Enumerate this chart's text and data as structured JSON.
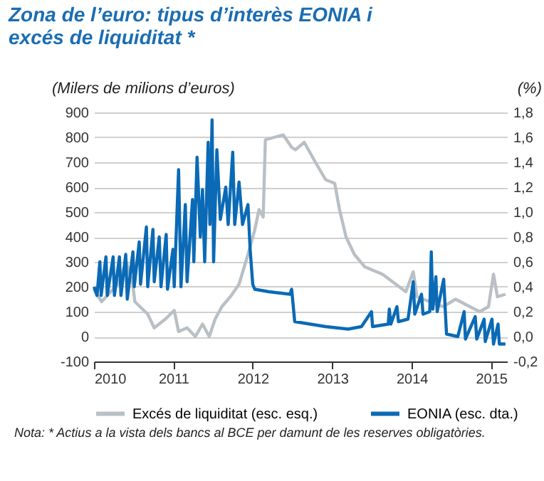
{
  "chart_data": {
    "type": "line",
    "title": "Zona de l’euro: tipus d’interès EONIA i excés de liquiditat *",
    "ylabel": "(Milers de milions d’euros)",
    "y2label": "(%)",
    "xlim": [
      "2010-01-01",
      "2015-03-15"
    ],
    "xticks": [
      {
        "value": "2010-01-01",
        "label": "2010"
      },
      {
        "value": "2011-01-01",
        "label": "2011"
      },
      {
        "value": "2012-01-01",
        "label": "2012"
      },
      {
        "value": "2013-01-01",
        "label": "2013"
      },
      {
        "value": "2014-01-01",
        "label": "2014"
      },
      {
        "value": "2015-01-01",
        "label": "2015"
      }
    ],
    "ylim": [
      -100,
      900
    ],
    "yticks": [
      -100,
      0,
      100,
      200,
      300,
      400,
      500,
      600,
      700,
      800,
      900
    ],
    "y2lim": [
      -0.2,
      1.8
    ],
    "y2ticks": [
      {
        "value": -0.2,
        "label": "-0,2"
      },
      {
        "value": 0,
        "label": "0,0"
      },
      {
        "value": 0.2,
        "label": "0,2"
      },
      {
        "value": 0.4,
        "label": "0,4"
      },
      {
        "value": 0.6,
        "label": "0,6"
      },
      {
        "value": 0.8,
        "label": "0,8"
      },
      {
        "value": 1,
        "label": "1,0"
      },
      {
        "value": 1.2,
        "label": "1,2"
      },
      {
        "value": 1.4,
        "label": "1,4"
      },
      {
        "value": 1.6,
        "label": "1,6"
      },
      {
        "value": 1.8,
        "label": "1,8"
      }
    ],
    "grid": "y",
    "legend": "bottom",
    "marker": "none",
    "line_style": "solid",
    "annotations": [
      "Nota: * Actius a la vista dels bancs al BCE per damunt de les reserves obligatòries."
    ],
    "series": [
      {
        "name": "Excés de liquiditat (esc. esq.)",
        "color": "#b9c0c5",
        "x": [
          "2010-01-01",
          "2010-02-05",
          "2010-04-20",
          "2010-05-30",
          "2010-06-28",
          "2010-07-08",
          "2010-09-05",
          "2010-10-05",
          "2010-11-25",
          "2011-01-05",
          "2011-01-25",
          "2011-03-05",
          "2011-04-12",
          "2011-05-15",
          "2011-06-15",
          "2011-07-12",
          "2011-08-12",
          "2011-09-20",
          "2011-10-30",
          "2011-12-10",
          "2012-01-08",
          "2012-01-30",
          "2012-02-18",
          "2012-02-28",
          "2012-05-20",
          "2012-06-28",
          "2012-07-15",
          "2012-08-25",
          "2012-10-15",
          "2012-12-01",
          "2013-01-12",
          "2013-02-03",
          "2013-03-05",
          "2013-04-12",
          "2013-05-30",
          "2013-08-20",
          "2013-10-20",
          "2013-12-05",
          "2014-01-08",
          "2014-01-25",
          "2014-03-25",
          "2014-05-25",
          "2014-07-22",
          "2014-09-25",
          "2014-11-10",
          "2014-12-20",
          "2015-01-12",
          "2015-01-30",
          "2015-03-08"
        ],
        "values": [
          190,
          140,
          210,
          300,
          210,
          140,
          90,
          35,
          70,
          105,
          20,
          35,
          0,
          50,
          0,
          70,
          120,
          160,
          210,
          330,
          420,
          510,
          480,
          790,
          810,
          760,
          750,
          780,
          700,
          630,
          615,
          510,
          400,
          330,
          280,
          250,
          210,
          180,
          260,
          160,
          140,
          120,
          150,
          120,
          100,
          120,
          250,
          160,
          170
        ]
      },
      {
        "name": "EONIA (esc. dta.)",
        "color": "#0a6ab6",
        "axis": "y2",
        "x": [
          "2010-01-01",
          "2010-01-15",
          "2010-01-28",
          "2010-02-03",
          "2010-02-25",
          "2010-03-03",
          "2010-03-30",
          "2010-04-05",
          "2010-04-28",
          "2010-05-05",
          "2010-05-27",
          "2010-06-03",
          "2010-06-29",
          "2010-07-05",
          "2010-07-28",
          "2010-08-03",
          "2010-08-30",
          "2010-09-05",
          "2010-09-29",
          "2010-10-05",
          "2010-10-28",
          "2010-11-05",
          "2010-11-29",
          "2010-12-05",
          "2010-12-30",
          "2011-01-05",
          "2011-01-25",
          "2011-02-05",
          "2011-02-25",
          "2011-03-05",
          "2011-03-30",
          "2011-04-05",
          "2011-04-20",
          "2011-05-05",
          "2011-05-15",
          "2011-05-25",
          "2011-06-10",
          "2011-06-18",
          "2011-06-28",
          "2011-07-05",
          "2011-07-20",
          "2011-08-05",
          "2011-08-30",
          "2011-09-10",
          "2011-10-01",
          "2011-10-10",
          "2011-10-30",
          "2011-11-15",
          "2011-12-10",
          "2011-12-20",
          "2012-01-01",
          "2012-01-10",
          "2012-03-15",
          "2012-06-20",
          "2012-06-28",
          "2012-07-12",
          "2012-12-01",
          "2013-03-15",
          "2013-05-15",
          "2013-06-30",
          "2013-07-05",
          "2013-09-15",
          "2013-09-20",
          "2013-09-27",
          "2013-10-25",
          "2013-11-01",
          "2013-12-15",
          "2014-01-08",
          "2014-01-15",
          "2014-02-15",
          "2014-02-22",
          "2014-03-25",
          "2014-04-01",
          "2014-04-08",
          "2014-04-22",
          "2014-04-28",
          "2014-05-28",
          "2014-06-10",
          "2014-08-01",
          "2014-08-30",
          "2014-09-05",
          "2014-10-20",
          "2014-10-27",
          "2014-11-30",
          "2014-12-05",
          "2015-01-05",
          "2015-01-12",
          "2015-02-02",
          "2015-02-08",
          "2015-03-08"
        ],
        "values": [
          0.4,
          0.33,
          0.6,
          0.33,
          0.64,
          0.33,
          0.64,
          0.33,
          0.64,
          0.33,
          0.66,
          0.3,
          0.68,
          0.4,
          0.76,
          0.42,
          0.88,
          0.4,
          0.86,
          0.44,
          0.8,
          0.4,
          0.82,
          0.38,
          0.7,
          0.4,
          1.34,
          0.4,
          1.06,
          0.44,
          1.1,
          0.6,
          1.44,
          0.8,
          1.18,
          0.6,
          1.56,
          0.9,
          1.74,
          0.6,
          1.5,
          0.94,
          1.2,
          0.9,
          1.48,
          0.9,
          1.24,
          0.9,
          1.06,
          0.7,
          0.42,
          0.38,
          0.36,
          0.34,
          0.38,
          0.12,
          0.08,
          0.06,
          0.08,
          0.2,
          0.08,
          0.1,
          0.22,
          0.1,
          0.24,
          0.12,
          0.14,
          0.44,
          0.18,
          0.34,
          0.18,
          0.2,
          0.68,
          0.22,
          0.48,
          0.2,
          0.46,
          0.02,
          0,
          0.2,
          -0.02,
          0.16,
          -0.02,
          0.14,
          -0.04,
          0.14,
          -0.06,
          0.1,
          -0.06,
          -0.06
        ]
      }
    ]
  }
}
